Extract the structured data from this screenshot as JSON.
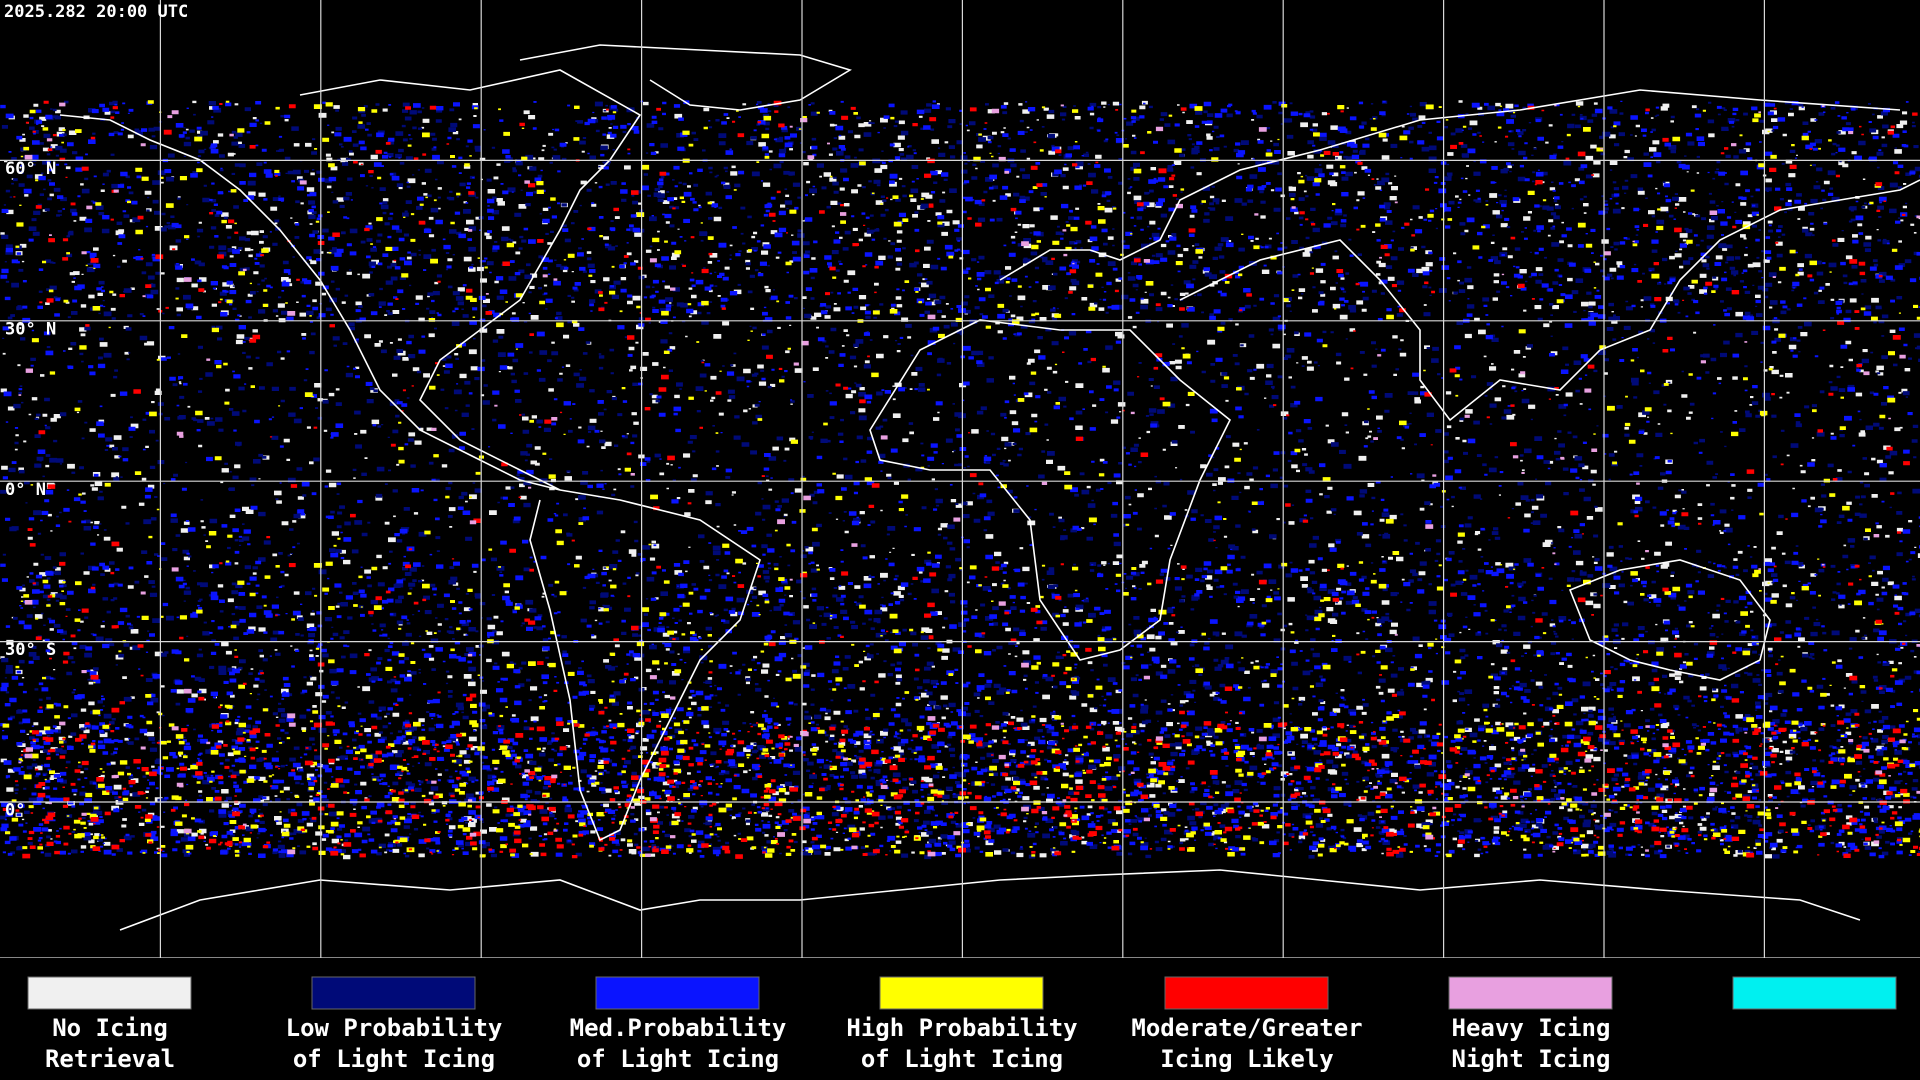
{
  "header": {
    "timestamp": "2025.282 20:00 UTC"
  },
  "latitude_labels": [
    "60° N",
    "30° N",
    "0° N",
    "30° S",
    "0°"
  ],
  "legend": [
    {
      "color": "#f0f0f0",
      "line1": "No Icing",
      "line2": "Retrieval"
    },
    {
      "color": "#000a78",
      "line1": "Low Probability",
      "line2": "of Light Icing"
    },
    {
      "color": "#0a14ff",
      "line1": "Med.Probability",
      "line2": "of Light Icing"
    },
    {
      "color": "#ffff00",
      "line1": "High Probability",
      "line2": "of Light Icing"
    },
    {
      "color": "#ff0000",
      "line1": "Moderate/Greater",
      "line2": "Icing Likely"
    },
    {
      "color": "#e8a0e0",
      "line1": "Heavy Icing",
      "line2": "Night Icing"
    }
  ]
}
